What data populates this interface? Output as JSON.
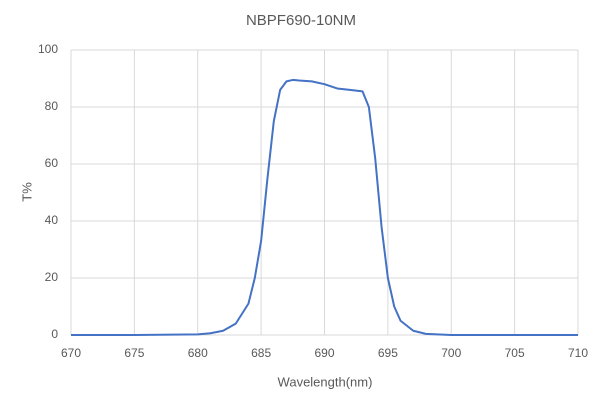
{
  "chart_data": {
    "type": "line",
    "title": "NBPF690-10NM",
    "x_label": "Wavelength(nm)",
    "y_label": "T%",
    "x": [
      670,
      675,
      680,
      681,
      682,
      683,
      684,
      684.5,
      685,
      685.5,
      686,
      686.5,
      687,
      687.5,
      688,
      689,
      690,
      691,
      692,
      693,
      693.5,
      694,
      694.5,
      695,
      695.5,
      696,
      697,
      698,
      700,
      705,
      710
    ],
    "series": [
      {
        "name": "T%",
        "color": "#4472c4",
        "values": [
          0,
          0,
          0.2,
          0.6,
          1.5,
          4,
          11,
          20,
          33,
          55,
          75,
          86,
          89,
          89.5,
          89.3,
          89,
          88,
          86.5,
          86,
          85.5,
          80,
          62,
          38,
          20,
          10,
          5,
          1.5,
          0.4,
          0,
          0,
          0
        ]
      }
    ],
    "xlim": [
      670,
      710
    ],
    "xticks": [
      670,
      675,
      680,
      685,
      690,
      695,
      700,
      705,
      710
    ],
    "ylim": [
      0,
      100
    ],
    "yticks": [
      0,
      20,
      40,
      60,
      80,
      100
    ],
    "grid": true
  }
}
